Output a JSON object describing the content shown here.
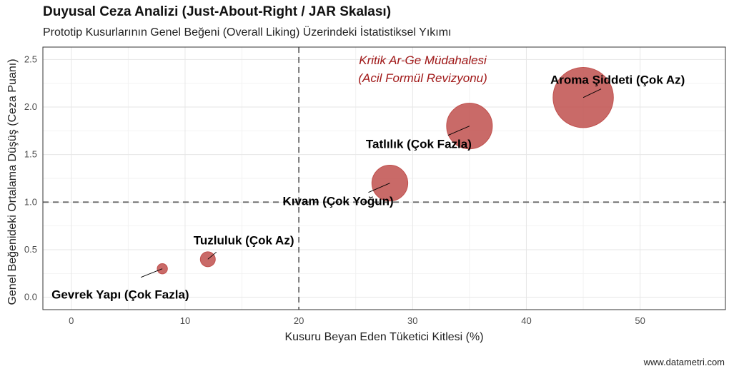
{
  "chart_data": {
    "type": "scatter",
    "title": "Duyusal Ceza Analizi (Just-About-Right / JAR Skalası)",
    "subtitle": "Prototip Kusurlarının Genel Beğeni (Overall Liking) Üzerindeki İstatistiksel Yıkımı",
    "xlabel": "Kusuru Beyan Eden Tüketici Kitlesi (%)",
    "ylabel": "Genel Beğenideki Ortalama Düşüş (Ceza Puanı)",
    "xlim": [
      -2.5,
      57.5
    ],
    "ylim": [
      -0.13,
      2.63
    ],
    "x_ticks": [
      0,
      10,
      20,
      30,
      40,
      50
    ],
    "y_ticks": [
      "0.0",
      "0.5",
      "1.0",
      "1.5",
      "2.0",
      "2.5"
    ],
    "grid": true,
    "reference_lines": {
      "x": 20,
      "y": 1.0
    },
    "point_color": "#c0504d",
    "annotation": [
      "Kritik Ar-Ge Müdahalesi",
      "(Acil Formül Revizyonu)"
    ],
    "annotation_color": "#a01818",
    "points": [
      {
        "label": "Gevrek Yapı (Çok Fazla)",
        "x": 8,
        "y": 0.3
      },
      {
        "label": "Tuzluluk (Çok Az)",
        "x": 12,
        "y": 0.4
      },
      {
        "label": "Kıvam (Çok Yoğun)",
        "x": 28,
        "y": 1.2
      },
      {
        "label": "Tatlılık (Çok Fazla)",
        "x": 35,
        "y": 1.8
      },
      {
        "label": "Aroma Şiddeti (Çok Az)",
        "x": 45,
        "y": 2.1
      }
    ]
  },
  "caption": "www.datametri.com"
}
